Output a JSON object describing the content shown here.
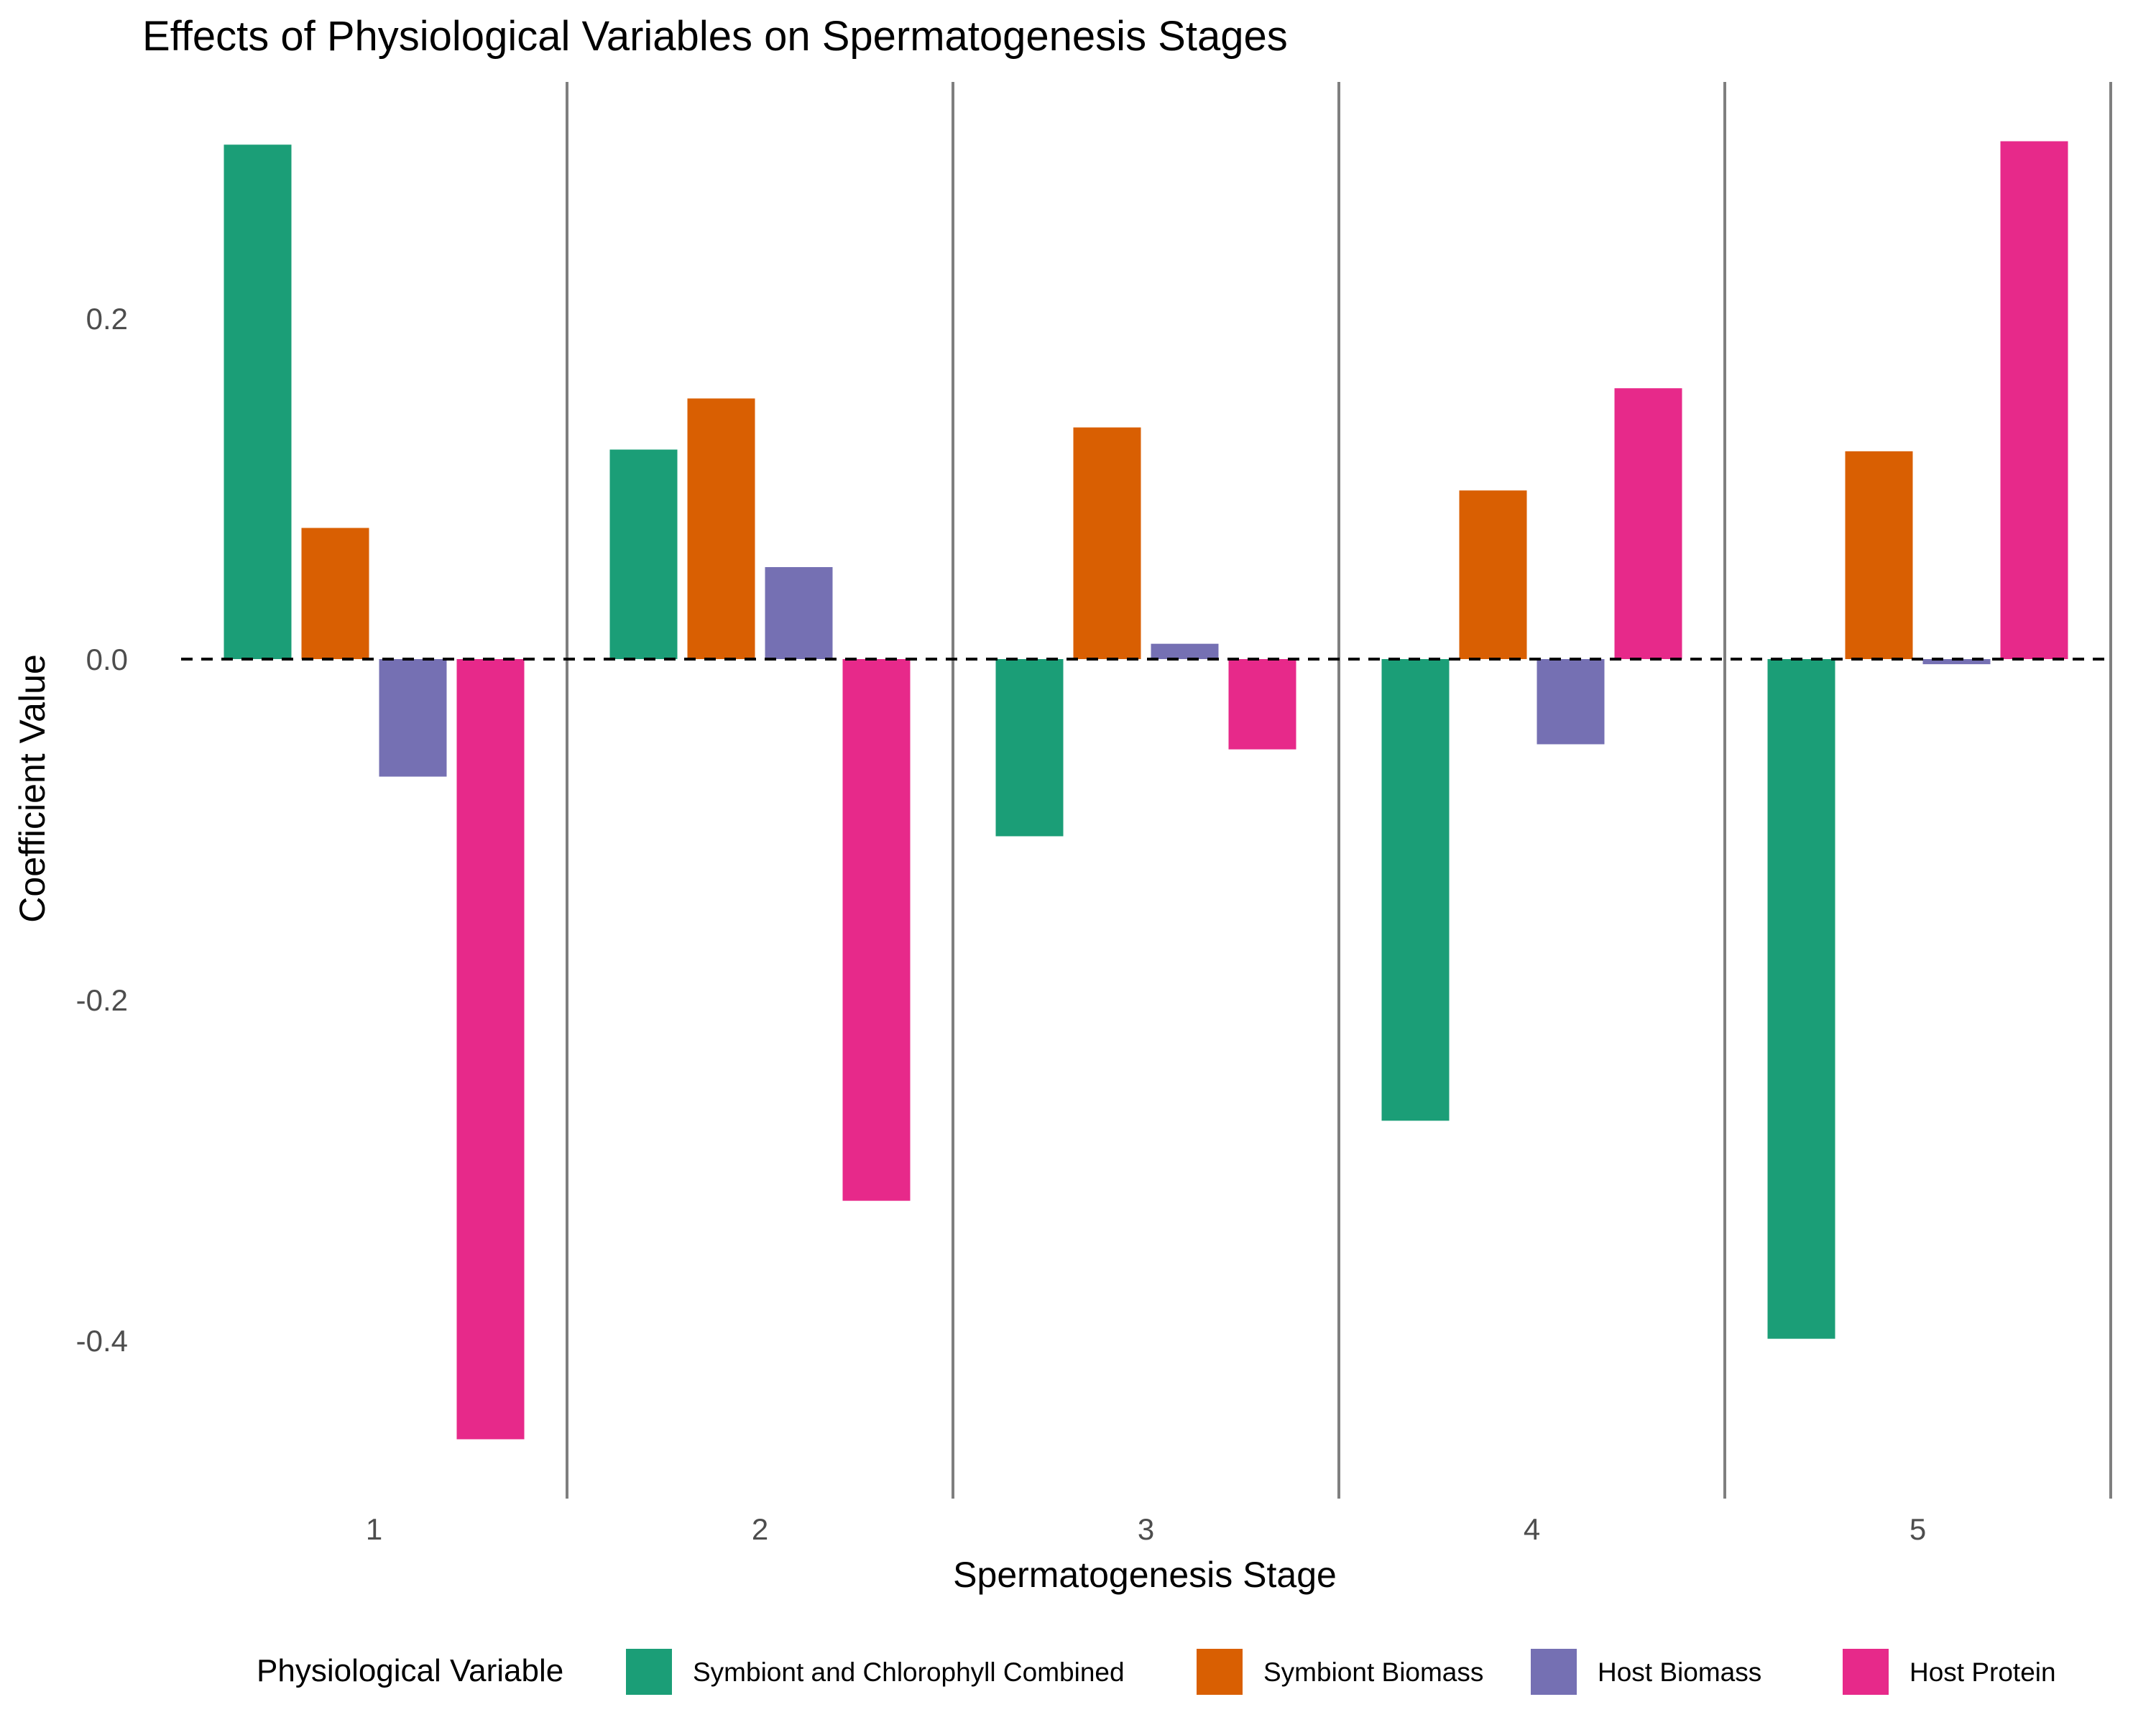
{
  "chart_data": {
    "type": "bar",
    "title": "Effects of Physiological Variables on Spermatogenesis Stages",
    "xlabel": "Spermatogenesis Stage",
    "ylabel": "Coefficient Value",
    "categories": [
      "1",
      "2",
      "3",
      "4",
      "5"
    ],
    "yticks": [
      {
        "value": -0.4,
        "label": "-0.4"
      },
      {
        "value": -0.2,
        "label": "-0.2"
      },
      {
        "value": 0.0,
        "label": "0.0"
      },
      {
        "value": 0.2,
        "label": "0.2"
      }
    ],
    "ylim": [
      -0.5,
      0.34
    ],
    "grid": false,
    "reference_line": {
      "value": 0,
      "style": "dashed"
    },
    "legend": {
      "title": "Physiological Variable",
      "position": "bottom"
    },
    "series": [
      {
        "name": "Symbiont and Chlorophyll Combined",
        "color": "#1b9e77",
        "values": [
          0.302,
          0.123,
          -0.104,
          -0.271,
          -0.399
        ]
      },
      {
        "name": "Symbiont Biomass",
        "color": "#d95f02",
        "values": [
          0.077,
          0.153,
          0.136,
          0.099,
          0.122
        ]
      },
      {
        "name": "Host Biomass",
        "color": "#7570b3",
        "values": [
          -0.069,
          0.054,
          0.009,
          -0.05,
          -0.003
        ]
      },
      {
        "name": "Host Protein",
        "color": "#e7298a",
        "values": [
          -0.458,
          -0.318,
          -0.053,
          0.159,
          0.304
        ]
      }
    ]
  }
}
